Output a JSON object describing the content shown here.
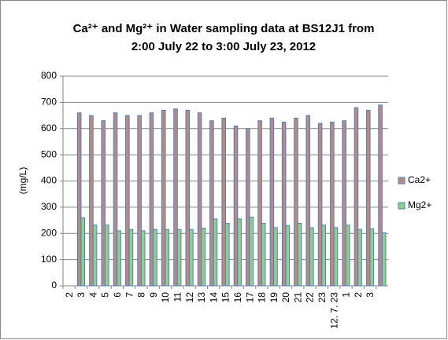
{
  "chart_data": {
    "type": "bar",
    "title": [
      "Ca²⁺ and Mg²⁺ in Water sampling data at BS12J1 from",
      "2:00 July 22 to 3:00 July 23, 2012"
    ],
    "y_label": "(mg/L)",
    "categories": [
      "2",
      "3",
      "4",
      "5",
      "6",
      "7",
      "8",
      "9",
      "10",
      "11",
      "12",
      "13",
      "14",
      "15",
      "16",
      "17",
      "18",
      "19",
      "20",
      "21",
      "22",
      "23",
      "12. 7. 23",
      "1",
      "2",
      "3",
      null
    ],
    "series": [
      {
        "name": "Ca2+",
        "color": "#b88a86",
        "values": [
          null,
          660,
          650,
          630,
          660,
          650,
          650,
          660,
          670,
          675,
          670,
          660,
          630,
          640,
          610,
          600,
          630,
          640,
          625,
          640,
          650,
          620,
          625,
          630,
          680,
          670,
          690
        ]
      },
      {
        "name": "Mg2+",
        "color": "#92d08a",
        "values": [
          null,
          260,
          232,
          232,
          210,
          215,
          210,
          215,
          215,
          215,
          215,
          220,
          255,
          238,
          255,
          262,
          238,
          222,
          230,
          238,
          222,
          232,
          222,
          232,
          215,
          218,
          202
        ]
      }
    ],
    "ylim": [
      0,
      800
    ],
    "yticks": [
      0,
      100,
      200,
      300,
      400,
      500,
      600,
      700,
      800
    ],
    "grid": true,
    "legend": "right"
  }
}
